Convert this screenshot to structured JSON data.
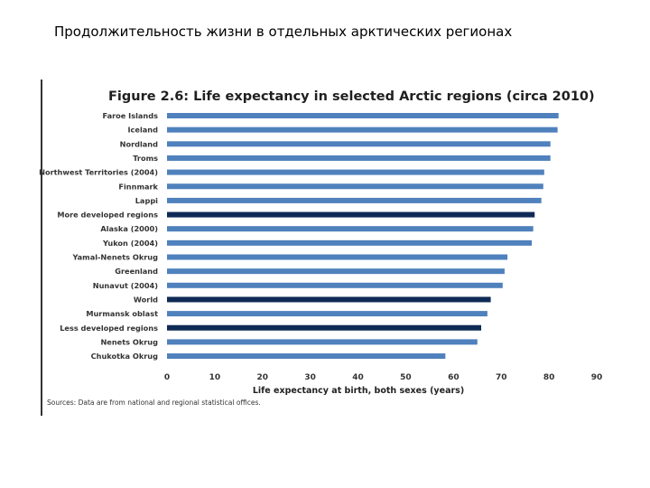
{
  "page": {
    "title": "Продолжительность жизни в отдельных арктических регионах"
  },
  "chart_data": {
    "type": "bar",
    "orientation": "horizontal",
    "title": "Figure 2.6: Life expectancy in selected Arctic regions (circa 2010)",
    "xlabel": "Life expectancy at birth, both sexes (years)",
    "ylabel": "",
    "xlim": [
      0,
      90
    ],
    "xticks": [
      "0",
      "10",
      "20",
      "30",
      "40",
      "50",
      "60",
      "70",
      "80",
      "90"
    ],
    "grid": false,
    "source": "Sources: Data are from national and regional statistical offices.",
    "colors": {
      "region": "#4f81bd",
      "aggregate": "#0f2a55"
    },
    "categories": [
      "Faroe Islands",
      "Iceland",
      "Nordland",
      "Troms",
      "Northwest Territories (2004)",
      "Finnmark",
      "Lappi",
      "More developed regions",
      "Alaska (2000)",
      "Yukon (2004)",
      "Yamal-Nenets Okrug",
      "Greenland",
      "Nunavut (2004)",
      "World",
      "Murmansk oblast",
      "Less developed regions",
      "Nenets Okrug",
      "Chukotka Okrug"
    ],
    "values": [
      82,
      81.8,
      80.3,
      80.3,
      79,
      78.8,
      78.4,
      77,
      76.7,
      76.4,
      71.3,
      70.7,
      70.3,
      67.8,
      67.1,
      65.8,
      65,
      58.3
    ],
    "highlight": [
      false,
      false,
      false,
      false,
      false,
      false,
      false,
      true,
      false,
      false,
      false,
      false,
      false,
      true,
      false,
      true,
      false,
      false
    ]
  }
}
